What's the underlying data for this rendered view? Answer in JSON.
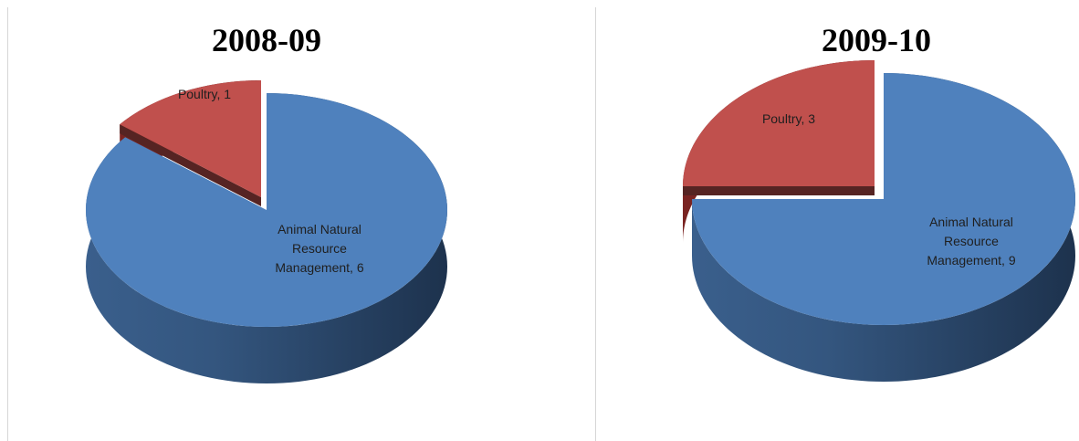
{
  "chart_data": [
    {
      "type": "pie",
      "title": "2008-09",
      "slices": [
        {
          "label": "Poultry, 1",
          "category": "Poultry",
          "value": 1,
          "color": "#c0504d",
          "exploded": true
        },
        {
          "label": "Animal Natural Resource Management, 6",
          "category": "Animal Natural Resource Management",
          "value": 6,
          "color": "#4f81bd",
          "exploded": false
        }
      ]
    },
    {
      "type": "pie",
      "title": "2009-10",
      "slices": [
        {
          "label": "Poultry, 3",
          "category": "Poultry",
          "value": 3,
          "color": "#c0504d",
          "exploded": true
        },
        {
          "label": "Animal Natural Resource Management, 9",
          "category": "Animal Natural Resource Management",
          "value": 9,
          "color": "#4f81bd",
          "exploded": false
        }
      ]
    }
  ]
}
